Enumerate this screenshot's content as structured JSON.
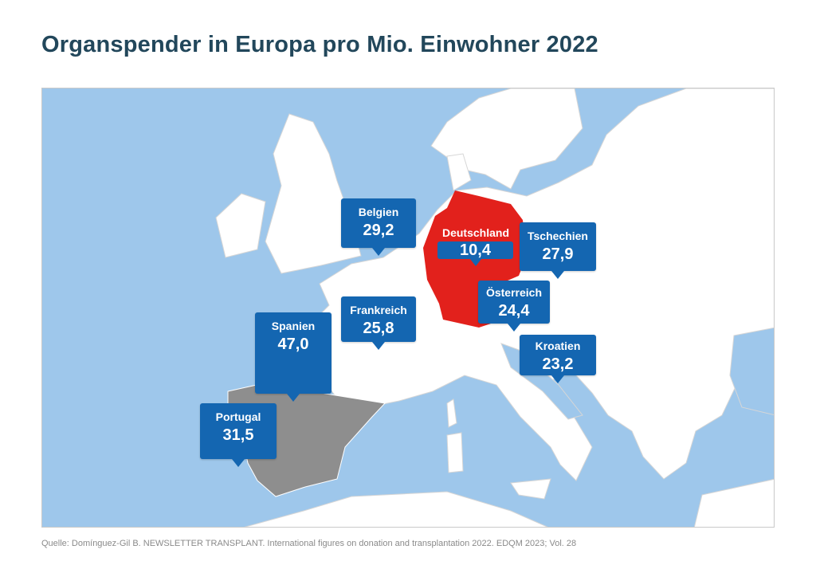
{
  "title": "Organspender in Europa pro Mio. Einwohner 2022",
  "map": {
    "colors": {
      "water": "#9ec7eb",
      "land": "#ffffff",
      "border": "#d6d6d6",
      "germany": "#e2211c",
      "iberia": "#8e8e8e",
      "callout": "#1466b1"
    },
    "callouts": [
      {
        "country": "Belgien",
        "value": "29,2"
      },
      {
        "country": "Deutschland",
        "value": "10,4"
      },
      {
        "country": "Tschechien",
        "value": "27,9"
      },
      {
        "country": "Österreich",
        "value": "24,4"
      },
      {
        "country": "Frankreich",
        "value": "25,8"
      },
      {
        "country": "Spanien",
        "value": "47,0"
      },
      {
        "country": "Kroatien",
        "value": "23,2"
      },
      {
        "country": "Portugal",
        "value": "31,5"
      }
    ]
  },
  "source": "Quelle: Domínguez-Gil B. NEWSLETTER TRANSPLANT. International figures on donation and transplantation 2022. EDQM 2023; Vol. 28"
}
